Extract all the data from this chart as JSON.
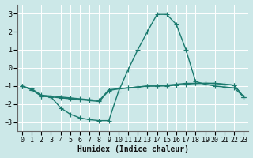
{
  "background_color": "#cce8e8",
  "grid_color": "#ffffff",
  "line_color": "#1a7a6e",
  "xlabel": "Humidex (Indice chaleur)",
  "xlim": [
    -0.5,
    23.5
  ],
  "ylim": [
    -3.5,
    3.5
  ],
  "yticks": [
    -3,
    -2,
    -1,
    0,
    1,
    2,
    3
  ],
  "xticks": [
    0,
    1,
    2,
    3,
    4,
    5,
    6,
    7,
    8,
    9,
    10,
    11,
    12,
    13,
    14,
    15,
    16,
    17,
    18,
    19,
    20,
    21,
    22,
    23
  ],
  "line1_x": [
    0,
    1,
    2,
    3,
    4,
    5,
    6,
    7,
    8,
    9,
    10,
    11,
    12,
    13,
    14,
    15,
    16,
    17,
    18,
    19,
    20,
    21,
    22,
    23
  ],
  "line1_y": [
    -1.0,
    -1.15,
    -1.5,
    -1.55,
    -1.6,
    -1.65,
    -1.7,
    -1.75,
    -1.8,
    -1.2,
    -1.15,
    -1.1,
    -1.05,
    -1.0,
    -1.0,
    -1.0,
    -0.95,
    -0.9,
    -0.85,
    -0.85,
    -0.85,
    -0.9,
    -0.95,
    -1.6
  ],
  "line2_x": [
    0,
    1,
    2,
    3,
    4,
    5,
    6,
    7,
    8,
    9,
    10,
    11,
    12,
    13,
    14,
    15,
    16,
    17,
    18,
    19,
    20,
    21,
    22,
    23
  ],
  "line2_y": [
    -1.0,
    -1.2,
    -1.55,
    -1.6,
    -1.65,
    -1.7,
    -1.75,
    -1.8,
    -1.85,
    -1.25,
    -1.15,
    -1.1,
    -1.05,
    -1.0,
    -1.0,
    -0.95,
    -0.9,
    -0.85,
    -0.85,
    -0.85,
    -0.85,
    -0.9,
    -0.95,
    -1.6
  ],
  "line3_x": [
    0,
    1,
    2,
    3,
    4,
    5,
    6,
    7,
    8,
    9,
    10,
    11,
    12,
    13,
    14,
    15,
    16,
    17,
    18,
    19,
    20,
    21,
    22,
    23
  ],
  "line3_y": [
    -1.0,
    -1.2,
    -1.55,
    -1.6,
    -2.2,
    -2.55,
    -2.75,
    -2.85,
    -2.9,
    -2.9,
    -1.3,
    -0.1,
    1.0,
    2.0,
    2.95,
    2.95,
    2.4,
    1.0,
    -0.75,
    -0.9,
    -1.0,
    -1.05,
    -1.1,
    -1.6
  ],
  "marker_size": 4,
  "linewidth": 1.0,
  "font_size_label": 7,
  "font_size_tick": 6
}
